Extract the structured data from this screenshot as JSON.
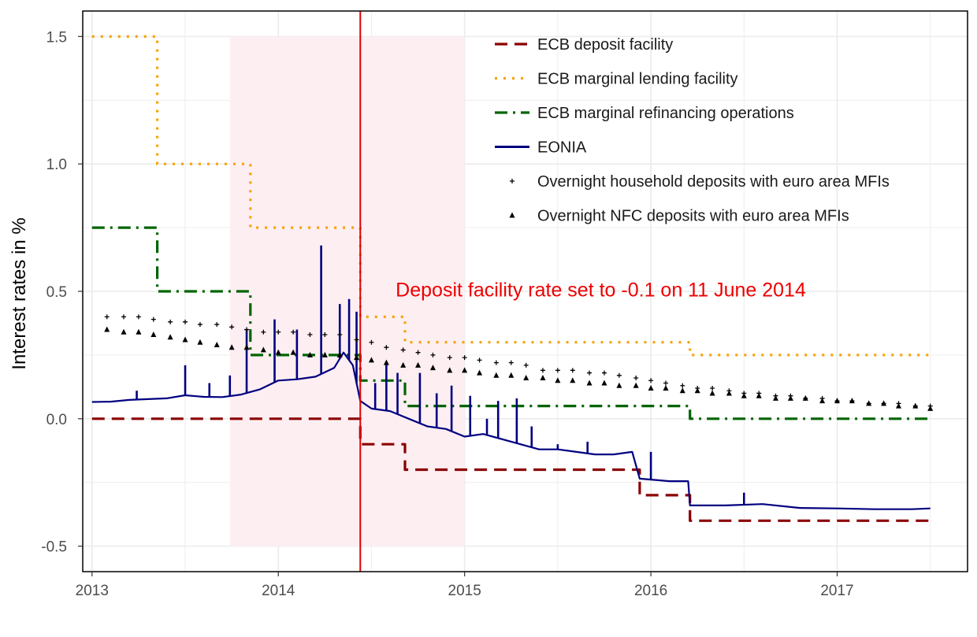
{
  "chart_data": {
    "type": "line",
    "title": "",
    "xlabel": "",
    "ylabel": "Interest rates in %",
    "xlim": [
      2012.95,
      2017.7
    ],
    "ylim": [
      -0.6,
      1.6
    ],
    "grid": true,
    "legend_position": "top-right",
    "x_ticks": [
      {
        "value": 2013,
        "label": "2013"
      },
      {
        "value": 2014,
        "label": "2014"
      },
      {
        "value": 2015,
        "label": "2015"
      },
      {
        "value": 2016,
        "label": "2016"
      },
      {
        "value": 2017,
        "label": "2017"
      }
    ],
    "y_ticks": [
      {
        "value": -0.5,
        "label": "-0.5"
      },
      {
        "value": 0.0,
        "label": "0.0"
      },
      {
        "value": 0.5,
        "label": "0.5"
      },
      {
        "value": 1.0,
        "label": "1.0"
      },
      {
        "value": 1.5,
        "label": "1.5"
      }
    ],
    "shaded_region": {
      "x": [
        2013.74,
        2015.0
      ],
      "y": [
        -0.5,
        1.5
      ],
      "color": "#fdeef2"
    },
    "vline": {
      "x": 2014.44,
      "color": "#e00000"
    },
    "annotation": {
      "text": "Deposit facility rate set to -0.1 on 11 June 2014",
      "x": 2014.63,
      "y": 0.48,
      "color": "#ee0000"
    },
    "series": [
      {
        "name": "ECB deposit facility",
        "kind": "step",
        "style": "dashed",
        "color": "#8b0000",
        "points": [
          [
            2013.0,
            0.0
          ],
          [
            2014.44,
            0.0
          ],
          [
            2014.44,
            -0.1
          ],
          [
            2014.68,
            -0.1
          ],
          [
            2014.68,
            -0.2
          ],
          [
            2015.94,
            -0.2
          ],
          [
            2015.94,
            -0.3
          ],
          [
            2016.21,
            -0.3
          ],
          [
            2016.21,
            -0.4
          ],
          [
            2017.5,
            -0.4
          ]
        ]
      },
      {
        "name": "ECB marginal lending facility",
        "kind": "step",
        "style": "dotted",
        "color": "#f5a300",
        "points": [
          [
            2013.0,
            1.5
          ],
          [
            2013.35,
            1.5
          ],
          [
            2013.35,
            1.0
          ],
          [
            2013.85,
            1.0
          ],
          [
            2013.85,
            0.75
          ],
          [
            2014.44,
            0.75
          ],
          [
            2014.44,
            0.4
          ],
          [
            2014.68,
            0.4
          ],
          [
            2014.68,
            0.3
          ],
          [
            2016.21,
            0.3
          ],
          [
            2016.21,
            0.25
          ],
          [
            2017.5,
            0.25
          ]
        ]
      },
      {
        "name": "ECB marginal refinancing operations",
        "kind": "step",
        "style": "dashdot",
        "color": "#006400",
        "points": [
          [
            2013.0,
            0.75
          ],
          [
            2013.35,
            0.75
          ],
          [
            2013.35,
            0.5
          ],
          [
            2013.85,
            0.5
          ],
          [
            2013.85,
            0.25
          ],
          [
            2014.44,
            0.25
          ],
          [
            2014.44,
            0.15
          ],
          [
            2014.68,
            0.15
          ],
          [
            2014.68,
            0.05
          ],
          [
            2016.21,
            0.05
          ],
          [
            2016.21,
            0.0
          ],
          [
            2017.5,
            0.0
          ]
        ]
      },
      {
        "name": "EONIA",
        "kind": "line",
        "style": "solid",
        "color": "#000080",
        "points": [
          [
            2013.0,
            0.066
          ],
          [
            2013.1,
            0.067
          ],
          [
            2013.2,
            0.074
          ],
          [
            2013.3,
            0.077
          ],
          [
            2013.4,
            0.08
          ],
          [
            2013.5,
            0.092
          ],
          [
            2013.6,
            0.086
          ],
          [
            2013.7,
            0.085
          ],
          [
            2013.8,
            0.095
          ],
          [
            2013.9,
            0.115
          ],
          [
            2014.0,
            0.15
          ],
          [
            2014.1,
            0.155
          ],
          [
            2014.2,
            0.165
          ],
          [
            2014.3,
            0.2
          ],
          [
            2014.35,
            0.26
          ],
          [
            2014.4,
            0.21
          ],
          [
            2014.44,
            0.07
          ],
          [
            2014.5,
            0.04
          ],
          [
            2014.6,
            0.03
          ],
          [
            2014.7,
            0.0
          ],
          [
            2014.8,
            -0.03
          ],
          [
            2014.9,
            -0.04
          ],
          [
            2015.0,
            -0.07
          ],
          [
            2015.1,
            -0.06
          ],
          [
            2015.2,
            -0.08
          ],
          [
            2015.3,
            -0.1
          ],
          [
            2015.4,
            -0.12
          ],
          [
            2015.5,
            -0.12
          ],
          [
            2015.6,
            -0.13
          ],
          [
            2015.7,
            -0.14
          ],
          [
            2015.8,
            -0.14
          ],
          [
            2015.9,
            -0.13
          ],
          [
            2015.94,
            -0.235
          ],
          [
            2016.1,
            -0.245
          ],
          [
            2016.2,
            -0.245
          ],
          [
            2016.21,
            -0.34
          ],
          [
            2016.4,
            -0.34
          ],
          [
            2016.6,
            -0.335
          ],
          [
            2016.8,
            -0.35
          ],
          [
            2017.0,
            -0.352
          ],
          [
            2017.2,
            -0.355
          ],
          [
            2017.4,
            -0.355
          ],
          [
            2017.5,
            -0.352
          ]
        ],
        "spikes": [
          [
            2013.24,
            0.11
          ],
          [
            2013.5,
            0.21
          ],
          [
            2013.63,
            0.14
          ],
          [
            2013.74,
            0.17
          ],
          [
            2013.83,
            0.35
          ],
          [
            2013.98,
            0.39
          ],
          [
            2014.1,
            0.35
          ],
          [
            2014.23,
            0.68
          ],
          [
            2014.33,
            0.45
          ],
          [
            2014.38,
            0.47
          ],
          [
            2014.42,
            0.42
          ],
          [
            2014.52,
            0.14
          ],
          [
            2014.58,
            0.22
          ],
          [
            2014.64,
            0.18
          ],
          [
            2014.76,
            0.18
          ],
          [
            2014.85,
            0.1
          ],
          [
            2014.93,
            0.13
          ],
          [
            2015.03,
            0.09
          ],
          [
            2015.12,
            0.0
          ],
          [
            2015.18,
            0.07
          ],
          [
            2015.28,
            0.08
          ],
          [
            2015.36,
            -0.03
          ],
          [
            2015.5,
            -0.1
          ],
          [
            2015.66,
            -0.09
          ],
          [
            2016.0,
            -0.13
          ],
          [
            2016.5,
            -0.29
          ]
        ]
      },
      {
        "name": "Overnight household deposits with euro area MFIs",
        "kind": "scatter",
        "marker": "plus",
        "color": "#000000",
        "points": [
          [
            2013.08,
            0.4
          ],
          [
            2013.17,
            0.4
          ],
          [
            2013.25,
            0.4
          ],
          [
            2013.33,
            0.39
          ],
          [
            2013.42,
            0.38
          ],
          [
            2013.5,
            0.38
          ],
          [
            2013.58,
            0.37
          ],
          [
            2013.67,
            0.37
          ],
          [
            2013.75,
            0.36
          ],
          [
            2013.83,
            0.35
          ],
          [
            2013.92,
            0.34
          ],
          [
            2014.0,
            0.34
          ],
          [
            2014.08,
            0.34
          ],
          [
            2014.17,
            0.33
          ],
          [
            2014.25,
            0.33
          ],
          [
            2014.33,
            0.33
          ],
          [
            2014.42,
            0.31
          ],
          [
            2014.5,
            0.3
          ],
          [
            2014.58,
            0.28
          ],
          [
            2014.67,
            0.27
          ],
          [
            2014.75,
            0.26
          ],
          [
            2014.83,
            0.25
          ],
          [
            2014.92,
            0.24
          ],
          [
            2015.0,
            0.24
          ],
          [
            2015.08,
            0.23
          ],
          [
            2015.17,
            0.22
          ],
          [
            2015.25,
            0.22
          ],
          [
            2015.33,
            0.21
          ],
          [
            2015.42,
            0.19
          ],
          [
            2015.5,
            0.19
          ],
          [
            2015.58,
            0.19
          ],
          [
            2015.67,
            0.18
          ],
          [
            2015.75,
            0.18
          ],
          [
            2015.83,
            0.17
          ],
          [
            2015.92,
            0.16
          ],
          [
            2016.0,
            0.15
          ],
          [
            2016.08,
            0.14
          ],
          [
            2016.17,
            0.13
          ],
          [
            2016.25,
            0.12
          ],
          [
            2016.33,
            0.12
          ],
          [
            2016.42,
            0.11
          ],
          [
            2016.5,
            0.1
          ],
          [
            2016.58,
            0.1
          ],
          [
            2016.67,
            0.09
          ],
          [
            2016.75,
            0.09
          ],
          [
            2016.83,
            0.08
          ],
          [
            2016.92,
            0.08
          ],
          [
            2017.0,
            0.07
          ],
          [
            2017.08,
            0.07
          ],
          [
            2017.17,
            0.06
          ],
          [
            2017.25,
            0.06
          ],
          [
            2017.33,
            0.06
          ],
          [
            2017.42,
            0.05
          ],
          [
            2017.5,
            0.05
          ]
        ]
      },
      {
        "name": "Overnight NFC deposits with euro area MFIs",
        "kind": "scatter",
        "marker": "triangle",
        "color": "#000000",
        "points": [
          [
            2013.08,
            0.35
          ],
          [
            2013.17,
            0.34
          ],
          [
            2013.25,
            0.34
          ],
          [
            2013.33,
            0.33
          ],
          [
            2013.42,
            0.32
          ],
          [
            2013.5,
            0.31
          ],
          [
            2013.58,
            0.3
          ],
          [
            2013.67,
            0.29
          ],
          [
            2013.75,
            0.28
          ],
          [
            2013.83,
            0.28
          ],
          [
            2013.92,
            0.27
          ],
          [
            2014.0,
            0.26
          ],
          [
            2014.08,
            0.26
          ],
          [
            2014.17,
            0.25
          ],
          [
            2014.25,
            0.25
          ],
          [
            2014.33,
            0.25
          ],
          [
            2014.42,
            0.24
          ],
          [
            2014.5,
            0.23
          ],
          [
            2014.58,
            0.22
          ],
          [
            2014.67,
            0.21
          ],
          [
            2014.75,
            0.21
          ],
          [
            2014.83,
            0.2
          ],
          [
            2014.92,
            0.19
          ],
          [
            2015.0,
            0.19
          ],
          [
            2015.08,
            0.18
          ],
          [
            2015.17,
            0.17
          ],
          [
            2015.25,
            0.17
          ],
          [
            2015.33,
            0.16
          ],
          [
            2015.42,
            0.16
          ],
          [
            2015.5,
            0.15
          ],
          [
            2015.58,
            0.15
          ],
          [
            2015.67,
            0.14
          ],
          [
            2015.75,
            0.14
          ],
          [
            2015.83,
            0.13
          ],
          [
            2015.92,
            0.13
          ],
          [
            2016.0,
            0.12
          ],
          [
            2016.08,
            0.12
          ],
          [
            2016.17,
            0.11
          ],
          [
            2016.25,
            0.11
          ],
          [
            2016.33,
            0.1
          ],
          [
            2016.42,
            0.1
          ],
          [
            2016.5,
            0.09
          ],
          [
            2016.58,
            0.09
          ],
          [
            2016.67,
            0.08
          ],
          [
            2016.75,
            0.08
          ],
          [
            2016.83,
            0.08
          ],
          [
            2016.92,
            0.07
          ],
          [
            2017.0,
            0.07
          ],
          [
            2017.08,
            0.07
          ],
          [
            2017.17,
            0.06
          ],
          [
            2017.25,
            0.06
          ],
          [
            2017.33,
            0.05
          ],
          [
            2017.42,
            0.05
          ],
          [
            2017.5,
            0.04
          ]
        ]
      }
    ]
  }
}
